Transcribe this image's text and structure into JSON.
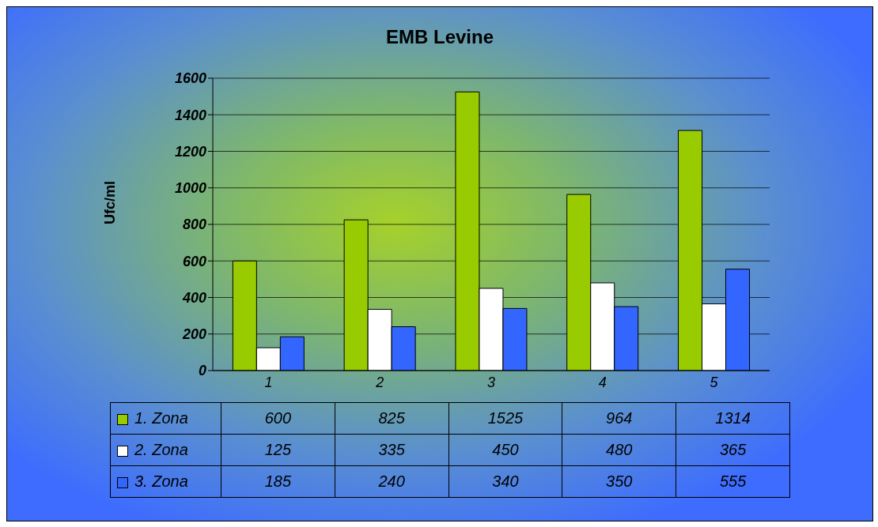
{
  "chart_data": {
    "type": "bar",
    "title": "EMB Levine",
    "ylabel": "Ufc/ml",
    "categories": [
      "1",
      "2",
      "3",
      "4",
      "5"
    ],
    "series": [
      {
        "name": "1. Zona",
        "color": "#99cc00",
        "values": [
          600,
          825,
          1525,
          964,
          1314
        ]
      },
      {
        "name": "2. Zona",
        "color": "#ffffff",
        "values": [
          125,
          335,
          450,
          480,
          365
        ]
      },
      {
        "name": "3. Zona",
        "color": "#3366ff",
        "values": [
          185,
          240,
          340,
          350,
          555
        ]
      }
    ],
    "ylim": [
      0,
      1600
    ],
    "yticks": [
      0,
      200,
      400,
      600,
      800,
      1000,
      1200,
      1400,
      1600
    ],
    "grid": "y",
    "legend": "bottom",
    "data_labels": true
  }
}
